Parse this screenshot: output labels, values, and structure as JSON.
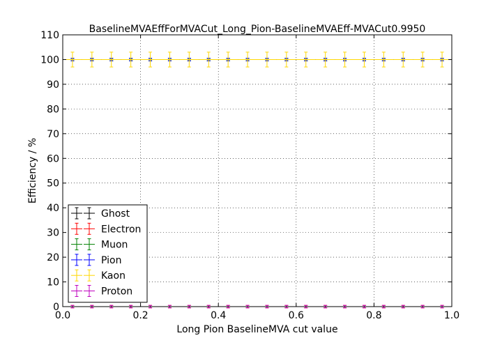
{
  "chart_data": {
    "type": "scatter",
    "title": "BaselineMVAEffForMVACut_Long_Pion-BaselineMVAEff-MVACut0.9950",
    "xlabel": "Long Pion BaselineMVA cut value",
    "ylabel": "Efficiency / %",
    "xlim": [
      0.0,
      1.0
    ],
    "ylim": [
      0,
      110
    ],
    "xticks": [
      "0.0",
      "0.2",
      "0.4",
      "0.6",
      "0.8",
      "1.0"
    ],
    "yticks": [
      "0",
      "10",
      "20",
      "30",
      "40",
      "50",
      "60",
      "70",
      "80",
      "90",
      "100",
      "110"
    ],
    "grid": true,
    "legend_position": "lower-left",
    "x": [
      0.025,
      0.075,
      0.125,
      0.175,
      0.225,
      0.275,
      0.325,
      0.375,
      0.425,
      0.475,
      0.525,
      0.575,
      0.625,
      0.675,
      0.725,
      0.775,
      0.825,
      0.875,
      0.925,
      0.975
    ],
    "series": [
      {
        "name": "Ghost",
        "color": "#000000",
        "values": [
          100,
          100,
          100,
          100,
          100,
          100,
          100,
          100,
          100,
          100,
          100,
          100,
          100,
          100,
          100,
          100,
          100,
          100,
          100,
          100
        ],
        "yerr": 0.5
      },
      {
        "name": "Electron",
        "color": "#ff0000",
        "values": [
          0,
          0,
          0,
          0,
          0,
          0,
          0,
          0,
          0,
          0,
          0,
          0,
          0,
          0,
          0,
          0,
          0,
          0,
          0,
          0
        ],
        "yerr": 0.5
      },
      {
        "name": "Muon",
        "color": "#008000",
        "values": [
          100,
          100,
          100,
          100,
          100,
          100,
          100,
          100,
          100,
          100,
          100,
          100,
          100,
          100,
          100,
          100,
          100,
          100,
          100,
          100
        ],
        "yerr": 0.5
      },
      {
        "name": "Pion",
        "color": "#0000ff",
        "values": [
          100,
          100,
          100,
          100,
          100,
          100,
          100,
          100,
          100,
          100,
          100,
          100,
          100,
          100,
          100,
          100,
          100,
          100,
          100,
          100
        ],
        "yerr": 0.5
      },
      {
        "name": "Kaon",
        "color": "#ffd700",
        "values": [
          100,
          100,
          100,
          100,
          100,
          100,
          100,
          100,
          100,
          100,
          100,
          100,
          100,
          100,
          100,
          100,
          100,
          100,
          100,
          100
        ],
        "yerr": 3.0
      },
      {
        "name": "Proton",
        "color": "#bf00bf",
        "values": [
          0,
          0,
          0,
          0,
          0,
          0,
          0,
          0,
          0,
          0,
          0,
          0,
          0,
          0,
          0,
          0,
          0,
          0,
          0,
          0
        ],
        "yerr": 0.5
      }
    ]
  }
}
